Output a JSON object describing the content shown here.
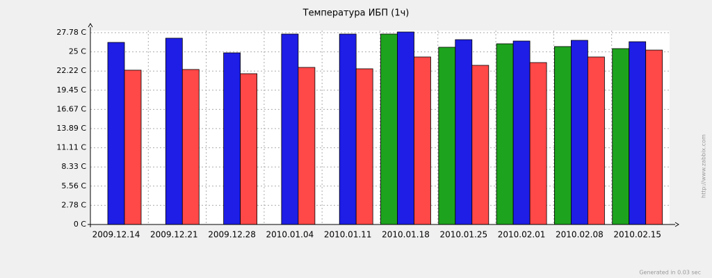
{
  "chart_data": {
    "type": "bar",
    "title": "Температура ИБП  (1ч)",
    "categories": [
      "2009.12.14",
      "2009.12.21",
      "2009.12.28",
      "2010.01.04",
      "2010.01.11",
      "2010.01.18",
      "2010.01.25",
      "2010.02.01",
      "2010.02.08",
      "2010.02.15"
    ],
    "series": [
      {
        "color": "#1ea31e",
        "values": [
          0,
          0,
          0,
          0,
          0,
          27.58,
          25.67,
          26.17,
          25.77,
          25.47
        ]
      },
      {
        "color": "#1e1ee6",
        "values": [
          26.37,
          26.98,
          24.86,
          27.58,
          27.58,
          27.88,
          26.77,
          26.57,
          26.67,
          26.47
        ]
      },
      {
        "color": "#ff4848",
        "values": [
          22.35,
          22.45,
          21.84,
          22.75,
          22.55,
          24.26,
          23.05,
          23.45,
          24.26,
          25.26
        ]
      }
    ],
    "ylim": [
      0,
      27.78
    ],
    "yticks": [
      {
        "value": 0,
        "label": "0 C"
      },
      {
        "value": 2.78,
        "label": "2.78 C"
      },
      {
        "value": 5.56,
        "label": "5.56 C"
      },
      {
        "value": 8.33,
        "label": "8.33 C"
      },
      {
        "value": 11.11,
        "label": "11.11 C"
      },
      {
        "value": 13.89,
        "label": "13.89 C"
      },
      {
        "value": 16.67,
        "label": "16.67 C"
      },
      {
        "value": 19.45,
        "label": "19.45 C"
      },
      {
        "value": 22.22,
        "label": "22.22 C"
      },
      {
        "value": 25,
        "label": "25 C"
      },
      {
        "value": 27.78,
        "label": "27.78 C"
      }
    ],
    "grid": true,
    "watermark": "http://www.zabbix.com",
    "footer": "Generated in 0.03 sec"
  }
}
